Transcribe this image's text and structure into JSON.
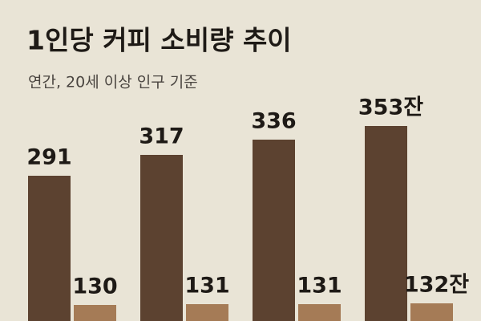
{
  "chart_data": {
    "type": "bar",
    "title": "1인당 커피 소비량 추이",
    "subtitle": "연간, 20세 이상 인구 기준",
    "categories": [
      null,
      null,
      null,
      null
    ],
    "series": [
      {
        "color": "#5c4230",
        "values": [
          291,
          317,
          336,
          353
        ],
        "value_labels": [
          "291",
          "317",
          "336",
          "353잔"
        ]
      },
      {
        "color": "#a57b56",
        "values": [
          130,
          131,
          131,
          132
        ],
        "value_labels": [
          "130",
          "131",
          "131",
          "132잔"
        ]
      }
    ]
  }
}
